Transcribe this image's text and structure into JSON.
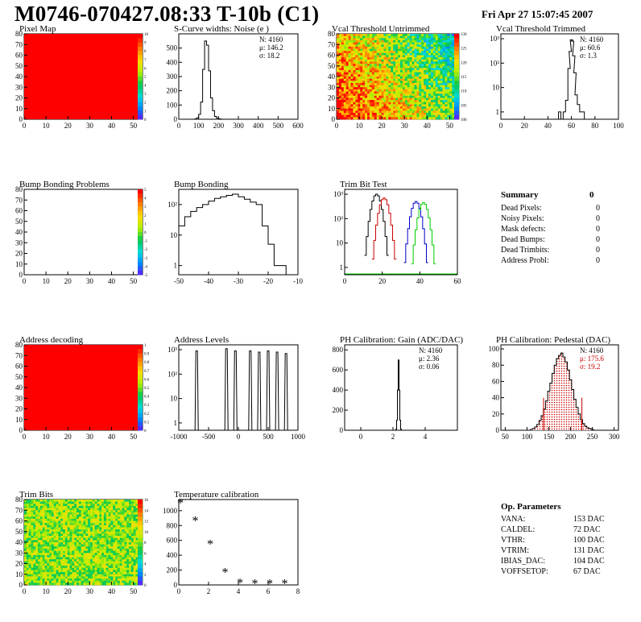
{
  "header": {
    "title": "M0746-070427.08:33 T-10b (C1)",
    "date": "Fri Apr 27 15:07:45 2007"
  },
  "colors": {
    "red_map": "#ff0000",
    "green_fit": "#00cc00",
    "blue_fit": "#0000cc",
    "red_fit": "#cc0000",
    "hatch": "#cc0000"
  },
  "chart_data": [
    {
      "id": "pixel-map",
      "type": "heatmap",
      "title": "Pixel Map",
      "x_ticks": [
        "0",
        "10",
        "20",
        "30",
        "40",
        "50"
      ],
      "y_ticks": [
        "0",
        "10",
        "20",
        "30",
        "40",
        "50",
        "60",
        "70",
        "80"
      ],
      "xlim": [
        0,
        52
      ],
      "ylim": [
        0,
        80
      ],
      "fill": "uniform red (all pixels alive)",
      "palette_ticks": [
        "10",
        "9",
        "8",
        "7",
        "6",
        "5",
        "4",
        "3",
        "2",
        "1",
        "0"
      ]
    },
    {
      "id": "scurve-widths",
      "type": "bar",
      "title": "S-Curve widths: Noise (e )",
      "stats": {
        "N": "4160",
        "mu": "146.2",
        "sigma": "18.2"
      },
      "x_ticks": [
        "0",
        "100",
        "200",
        "300",
        "400",
        "500",
        "600"
      ],
      "y_ticks": [
        "0",
        "100",
        "200",
        "300",
        "400",
        "500"
      ],
      "xlim": [
        0,
        600
      ],
      "ylim": [
        0,
        600
      ],
      "x": [
        85,
        95,
        105,
        115,
        125,
        135,
        145,
        155,
        165,
        175,
        185,
        195,
        205,
        215,
        225
      ],
      "values": [
        2,
        10,
        35,
        120,
        350,
        550,
        520,
        340,
        150,
        60,
        20,
        8,
        3,
        1,
        0
      ]
    },
    {
      "id": "vcal-untrimmed",
      "type": "heatmap",
      "title": "Vcal Threshold Untrimmed",
      "x_ticks": [
        "0",
        "10",
        "20",
        "30",
        "40",
        "50"
      ],
      "y_ticks": [
        "0",
        "10",
        "20",
        "30",
        "40",
        "50",
        "60",
        "70",
        "80"
      ],
      "palette_ticks": [
        "130",
        "125",
        "120",
        "115",
        "110",
        "105",
        "100"
      ]
    },
    {
      "id": "vcal-trimmed",
      "type": "bar",
      "title": "Vcal Threshold Trimmed",
      "stats": {
        "N": "4160",
        "mu": "60.6",
        "sigma": "1.3"
      },
      "log_y": true,
      "x_ticks": [
        "0",
        "20",
        "40",
        "60",
        "80",
        "100"
      ],
      "y_ticks": [
        "1",
        "10",
        "10²",
        "10³"
      ],
      "xlim": [
        0,
        100
      ],
      "x": [
        50,
        52,
        54,
        56,
        58,
        59,
        60,
        61,
        62,
        63,
        64,
        66,
        68,
        70
      ],
      "values": [
        1,
        0,
        1,
        3,
        60,
        300,
        900,
        800,
        200,
        40,
        5,
        2,
        1,
        1
      ]
    },
    {
      "id": "bump-bonding-problems",
      "type": "heatmap",
      "title": "Bump Bonding Problems",
      "x_ticks": [
        "0",
        "10",
        "20",
        "30",
        "40",
        "50"
      ],
      "y_ticks": [
        "0",
        "10",
        "20",
        "30",
        "40",
        "50",
        "60",
        "70",
        "80"
      ],
      "palette_ticks": [
        "5",
        "4",
        "3",
        "2",
        "1",
        "0",
        "-1",
        "-2",
        "-3",
        "-4",
        "-5"
      ]
    },
    {
      "id": "bump-bonding",
      "type": "bar",
      "title": "Bump Bonding",
      "log_y": true,
      "x_ticks": [
        "-50",
        "-40",
        "-30",
        "-20",
        "-10"
      ],
      "y_ticks": [
        "1",
        "10",
        "10²"
      ],
      "xlim": [
        -50,
        -10
      ],
      "x": [
        -49,
        -47,
        -45,
        -43,
        -41,
        -39,
        -37,
        -35,
        -33,
        -31,
        -29,
        -27,
        -25,
        -23,
        -21,
        -19,
        -17,
        -15
      ],
      "values": [
        20,
        40,
        60,
        80,
        100,
        130,
        160,
        180,
        200,
        220,
        180,
        150,
        120,
        100,
        20,
        5,
        1,
        1
      ]
    },
    {
      "id": "trim-bit-test",
      "type": "line",
      "title": "Trim Bit Test",
      "log_y": true,
      "x_ticks": [
        "0",
        "20",
        "40",
        "60"
      ],
      "y_ticks": [
        "1",
        "10",
        "10²",
        "10³"
      ],
      "xlim": [
        0,
        60
      ],
      "series": [
        {
          "color": "#000000",
          "center": 17,
          "peak": 1000
        },
        {
          "color": "#cc0000",
          "center": 21,
          "peak": 700
        },
        {
          "color": "#0000cc",
          "center": 38,
          "peak": 500
        },
        {
          "color": "#00cc00",
          "center": 42,
          "peak": 450
        }
      ]
    },
    {
      "id": "address-decoding",
      "type": "heatmap",
      "title": "Address decoding",
      "x_ticks": [
        "0",
        "10",
        "20",
        "30",
        "40",
        "50"
      ],
      "y_ticks": [
        "0",
        "10",
        "20",
        "30",
        "40",
        "50",
        "60",
        "70",
        "80"
      ],
      "palette_ticks": [
        "1",
        "0.9",
        "0.8",
        "0.7",
        "0.6",
        "0.5",
        "0.4",
        "0.3",
        "0.2",
        "0.1",
        "0"
      ]
    },
    {
      "id": "address-levels",
      "type": "bar",
      "title": "Address Levels",
      "log_y": true,
      "x_ticks": [
        "-1000",
        "-500",
        "0",
        "500",
        "1000"
      ],
      "y_ticks": [
        "1",
        "10",
        "10²",
        "10³"
      ],
      "xlim": [
        -1000,
        1000
      ],
      "peaks": [
        -700,
        -200,
        -50,
        200,
        350,
        500,
        650,
        800
      ],
      "peak_heights": [
        900,
        1100,
        900,
        900,
        800,
        900,
        800,
        700
      ]
    },
    {
      "id": "ph-gain",
      "type": "bar",
      "title": "PH Calibration: Gain (ADC/DAC)",
      "stats": {
        "N": "4160",
        "mu": "2.36",
        "sigma": "0.06"
      },
      "x_ticks": [
        "0",
        "2",
        "4"
      ],
      "y_ticks": [
        "0",
        "200",
        "400",
        "600",
        "800"
      ],
      "xlim": [
        -1,
        6
      ],
      "ylim": [
        0,
        850
      ],
      "x": [
        2.2,
        2.25,
        2.3,
        2.35,
        2.4,
        2.45,
        2.5
      ],
      "values": [
        10,
        100,
        400,
        700,
        400,
        100,
        10
      ]
    },
    {
      "id": "ph-pedestal",
      "type": "bar",
      "title": "PH Calibration: Pedestal (DAC)",
      "stats": {
        "N": "4160",
        "mu": "175.6",
        "sigma": "19.2"
      },
      "x_ticks": [
        "50",
        "100",
        "150",
        "200",
        "250",
        "300"
      ],
      "y_ticks": [
        "0",
        "20",
        "40",
        "60",
        "80",
        "100"
      ],
      "xlim": [
        40,
        310
      ],
      "ylim": [
        0,
        105
      ],
      "cut_lines": [
        138,
        226
      ],
      "x": [
        110,
        115,
        120,
        125,
        130,
        135,
        140,
        145,
        150,
        155,
        160,
        165,
        170,
        175,
        180,
        185,
        190,
        195,
        200,
        205,
        210,
        215,
        220,
        225,
        230,
        235,
        240,
        245,
        250
      ],
      "values": [
        1,
        2,
        4,
        7,
        12,
        18,
        26,
        36,
        48,
        58,
        70,
        80,
        88,
        92,
        95,
        90,
        84,
        74,
        62,
        50,
        38,
        28,
        20,
        13,
        8,
        5,
        3,
        2,
        1
      ]
    },
    {
      "id": "trim-bits",
      "type": "heatmap",
      "title": "Trim Bits",
      "x_ticks": [
        "0",
        "10",
        "20",
        "30",
        "40",
        "50"
      ],
      "y_ticks": [
        "0",
        "10",
        "20",
        "30",
        "40",
        "50",
        "60",
        "70",
        "80"
      ],
      "palette_ticks": [
        "16",
        "14",
        "12",
        "10",
        "8",
        "6",
        "4",
        "2",
        "0"
      ]
    },
    {
      "id": "temp-calib",
      "type": "scatter",
      "title": "Temperature calibration",
      "x_ticks": [
        "0",
        "2",
        "4",
        "6",
        "8"
      ],
      "y_ticks": [
        "0",
        "200",
        "400",
        "600",
        "800",
        "1000"
      ],
      "xlim": [
        0,
        8
      ],
      "ylim": [
        0,
        1150
      ],
      "x": [
        0,
        1,
        2,
        3,
        4,
        5,
        6,
        7
      ],
      "values": [
        1100,
        860,
        550,
        170,
        25,
        15,
        15,
        15
      ]
    }
  ],
  "summary": {
    "title": "Summary",
    "total": "0",
    "rows": [
      {
        "label": "Dead Pixels:",
        "value": "0"
      },
      {
        "label": "Noisy Pixels:",
        "value": "0"
      },
      {
        "label": "Mask defects:",
        "value": "0"
      },
      {
        "label": "Dead Bumps:",
        "value": "0"
      },
      {
        "label": "Dead Trimbits:",
        "value": "0"
      },
      {
        "label": "Address Probl:",
        "value": "0"
      }
    ]
  },
  "op_params": {
    "title": "Op. Parameters",
    "rows": [
      {
        "label": "VANA:",
        "value": "153 DAC"
      },
      {
        "label": "CALDEL:",
        "value": "72 DAC"
      },
      {
        "label": "VTHR:",
        "value": "100 DAC"
      },
      {
        "label": "VTRIM:",
        "value": "131 DAC"
      },
      {
        "label": "IBIAS_DAC:",
        "value": "104 DAC"
      },
      {
        "label": "VOFFSETOP:",
        "value": "67 DAC"
      }
    ]
  }
}
